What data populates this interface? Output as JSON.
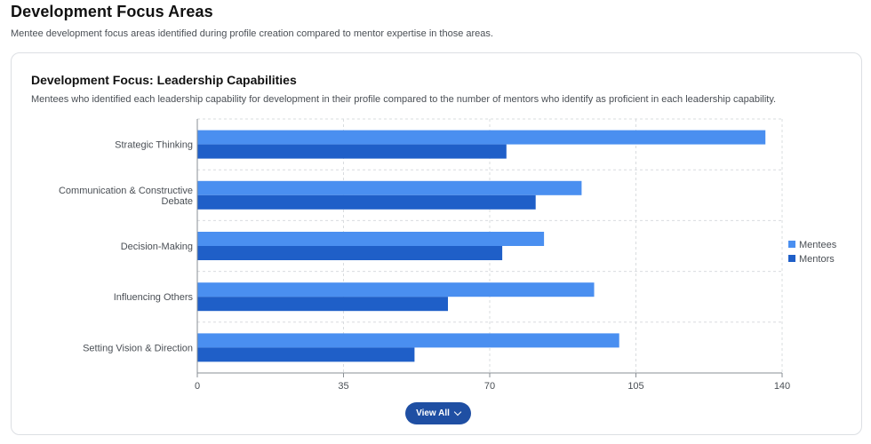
{
  "page": {
    "title": "Development Focus Areas",
    "subtitle": "Mentee development focus areas identified during profile creation compared to mentor expertise in those areas."
  },
  "card": {
    "title": "Development Focus: Leadership Capabilities",
    "subtitle": "Mentees who identified each leadership capability for development in their profile compared to the number of mentors who identify as proficient in each leadership capability.",
    "view_all_label": "View All"
  },
  "chart_data": {
    "type": "bar",
    "orientation": "horizontal",
    "categories": [
      [
        "Strategic Thinking"
      ],
      [
        "Communication & Constructive",
        "Debate"
      ],
      [
        "Decision-Making"
      ],
      [
        "Influencing Others"
      ],
      [
        "Setting Vision & Direction"
      ]
    ],
    "series": [
      {
        "name": "Mentees",
        "color": "#4a8ff0",
        "values": [
          136,
          92,
          83,
          95,
          101
        ]
      },
      {
        "name": "Mentors",
        "color": "#1f5fc8",
        "values": [
          74,
          81,
          73,
          60,
          52
        ]
      }
    ],
    "xlim": [
      0,
      140
    ],
    "xticks": [
      0,
      35,
      70,
      105,
      140
    ],
    "grid": true,
    "legend_position": "right"
  }
}
